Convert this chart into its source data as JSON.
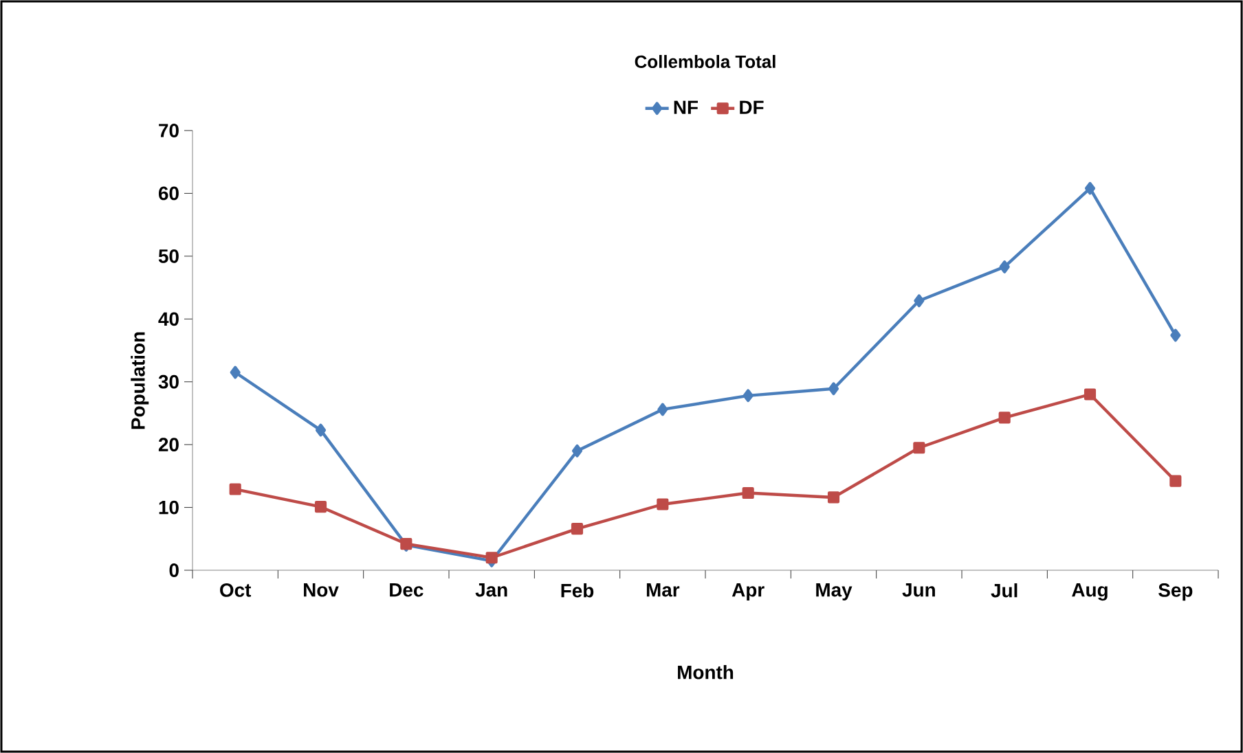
{
  "chart_data": {
    "type": "line",
    "title": "Collembola Total",
    "xlabel": "Month",
    "ylabel": "Population",
    "categories": [
      "Oct",
      "Nov",
      "Dec",
      "Jan",
      "Feb",
      "Mar",
      "Apr",
      "May",
      "Jun",
      "Jul",
      "Aug",
      "Sep"
    ],
    "series": [
      {
        "name": "NF",
        "color": "#4a7ebb",
        "marker": "diamond",
        "values": [
          31.5,
          22.3,
          4,
          1.5,
          19,
          25.6,
          27.8,
          28.9,
          42.9,
          48.3,
          60.8,
          37.4
        ]
      },
      {
        "name": "DF",
        "color": "#be4b48",
        "marker": "square",
        "values": [
          12.9,
          10.1,
          4.2,
          2,
          6.6,
          10.5,
          12.3,
          11.6,
          19.5,
          24.3,
          28,
          14.2
        ]
      }
    ],
    "ylim": [
      0,
      70
    ],
    "yticks": [
      0,
      10,
      20,
      30,
      40,
      50,
      60,
      70
    ],
    "grid": false,
    "legend": "top",
    "line_style": "solid"
  }
}
